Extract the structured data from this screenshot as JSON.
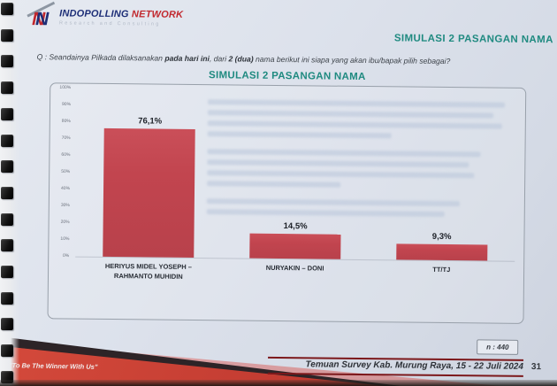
{
  "page": {
    "logo": {
      "monogram": "N",
      "brand_primary": "INDOPOLLING",
      "brand_secondary": "NETWORK",
      "tagline": "Research and Consulting"
    },
    "header_title": "SIMULASI 2 PASANGAN NAMA",
    "question_parts": {
      "prefix": "Q : Seandainya Pilkada dilaksanakan ",
      "bold_1": "pada hari ini",
      "middle": ", dari ",
      "bold_2": "2 (dua)",
      "suffix": " nama berikut ini siapa yang akan ibu/bapak pilih sebagai?"
    },
    "sample_size_label": "n : 440",
    "footer": {
      "slogan": "\"To Be The Winner With Us\"",
      "source": "Temuan Survey Kab. Murung Raya, 15 - 22 Juli 2024",
      "page_number": "31"
    }
  },
  "chart_data": {
    "type": "bar",
    "title": "SIMULASI 2 PASANGAN NAMA",
    "categories": [
      "HERIYUS MIDEL YOSEPH – RAHMANTO MUHIDIN",
      "NURYAKIN – DONI",
      "TT/TJ"
    ],
    "values": [
      76.1,
      14.5,
      9.3
    ],
    "value_labels": [
      "76,1%",
      "14,5%",
      "9,3%"
    ],
    "xlabel": "",
    "ylabel": "",
    "ylim": [
      0,
      100
    ],
    "y_ticks": [
      "100%",
      "90%",
      "80%",
      "70%",
      "60%",
      "50%",
      "40%",
      "30%",
      "20%",
      "10%",
      "0%"
    ],
    "grid": false,
    "legend": false,
    "bar_color": "#c2454f",
    "sample_size": "n : 440"
  },
  "colors": {
    "teal": "#1f8a80",
    "bar": "#c2454f",
    "red": "#c23b31",
    "maroon": "#7c181b",
    "navy": "#1d2e77",
    "brand_red": "#c1272d"
  }
}
